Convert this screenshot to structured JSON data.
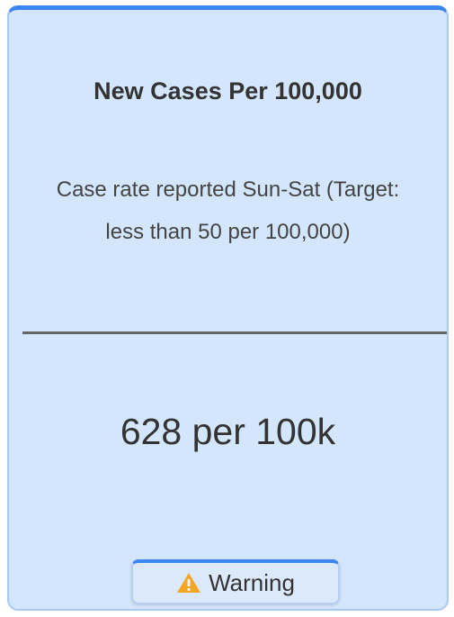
{
  "card": {
    "title": "New Cases Per 100,000",
    "subtitle": "Case rate reported Sun-Sat (Target: less than 50 per 100,000)",
    "value": "628 per 100k",
    "status": "Warning"
  }
}
